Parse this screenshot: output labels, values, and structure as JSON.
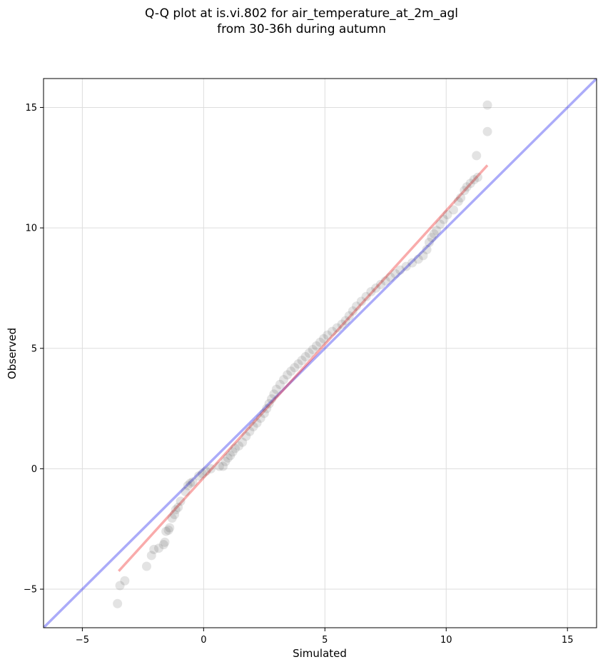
{
  "chart_data": {
    "type": "scatter",
    "title_line1": "Q-Q plot at is.vi.802 for air_temperature_at_2m_agl",
    "title_line2": "from 30-36h during autumn",
    "xlabel": "Simulated",
    "ylabel": "Observed",
    "xlim": [
      -6.6,
      16.2
    ],
    "ylim": [
      -6.6,
      16.2
    ],
    "xticks": [
      -5,
      0,
      5,
      10,
      15
    ],
    "yticks": [
      -5,
      0,
      5,
      10,
      15
    ],
    "xtick_labels": [
      "−5",
      "0",
      "5",
      "10",
      "15"
    ],
    "ytick_labels": [
      "−5",
      "0",
      "5",
      "10",
      "15"
    ],
    "grid": true,
    "identity_line": {
      "color": "#0000ee",
      "x": [
        -6.6,
        16.2
      ],
      "y": [
        -6.6,
        16.2
      ]
    },
    "fit_line": {
      "color": "#ee0000",
      "x": [
        -3.5,
        11.7
      ],
      "y": [
        -4.25,
        12.6
      ]
    },
    "points_color": "#444444",
    "points": [
      [
        -3.55,
        -5.6
      ],
      [
        -3.45,
        -4.85
      ],
      [
        -3.25,
        -4.65
      ],
      [
        -2.35,
        -4.05
      ],
      [
        -2.15,
        -3.6
      ],
      [
        -2.05,
        -3.35
      ],
      [
        -1.85,
        -3.3
      ],
      [
        -1.65,
        -3.15
      ],
      [
        -1.6,
        -3.05
      ],
      [
        -1.55,
        -2.6
      ],
      [
        -1.45,
        -2.55
      ],
      [
        -1.4,
        -2.45
      ],
      [
        -1.3,
        -2.05
      ],
      [
        -1.2,
        -1.9
      ],
      [
        -1.15,
        -1.7
      ],
      [
        -1.05,
        -1.6
      ],
      [
        -0.95,
        -1.35
      ],
      [
        -0.75,
        -0.95
      ],
      [
        -0.65,
        -0.7
      ],
      [
        -0.55,
        -0.6
      ],
      [
        -0.45,
        -0.55
      ],
      [
        -0.2,
        -0.3
      ],
      [
        -0.05,
        -0.2
      ],
      [
        0.1,
        -0.1
      ],
      [
        0.3,
        0.0
      ],
      [
        0.65,
        0.1
      ],
      [
        0.8,
        0.1
      ],
      [
        0.9,
        0.3
      ],
      [
        1.0,
        0.45
      ],
      [
        1.1,
        0.55
      ],
      [
        1.2,
        0.7
      ],
      [
        1.3,
        0.85
      ],
      [
        1.45,
        0.95
      ],
      [
        1.6,
        1.1
      ],
      [
        1.75,
        1.35
      ],
      [
        1.9,
        1.55
      ],
      [
        2.05,
        1.75
      ],
      [
        2.2,
        1.9
      ],
      [
        2.35,
        2.1
      ],
      [
        2.5,
        2.3
      ],
      [
        2.6,
        2.5
      ],
      [
        2.7,
        2.7
      ],
      [
        2.8,
        2.9
      ],
      [
        2.9,
        3.1
      ],
      [
        3.0,
        3.3
      ],
      [
        3.15,
        3.5
      ],
      [
        3.3,
        3.7
      ],
      [
        3.45,
        3.9
      ],
      [
        3.6,
        4.05
      ],
      [
        3.75,
        4.2
      ],
      [
        3.9,
        4.35
      ],
      [
        4.05,
        4.5
      ],
      [
        4.2,
        4.65
      ],
      [
        4.35,
        4.8
      ],
      [
        4.5,
        4.95
      ],
      [
        4.65,
        5.1
      ],
      [
        4.8,
        5.25
      ],
      [
        4.95,
        5.4
      ],
      [
        5.1,
        5.55
      ],
      [
        5.3,
        5.7
      ],
      [
        5.5,
        5.85
      ],
      [
        5.7,
        6.0
      ],
      [
        5.85,
        6.15
      ],
      [
        6.0,
        6.35
      ],
      [
        6.15,
        6.55
      ],
      [
        6.3,
        6.75
      ],
      [
        6.5,
        6.95
      ],
      [
        6.7,
        7.15
      ],
      [
        6.9,
        7.35
      ],
      [
        7.1,
        7.5
      ],
      [
        7.3,
        7.65
      ],
      [
        7.5,
        7.8
      ],
      [
        7.7,
        7.95
      ],
      [
        7.9,
        8.1
      ],
      [
        8.1,
        8.25
      ],
      [
        8.35,
        8.4
      ],
      [
        8.6,
        8.55
      ],
      [
        8.85,
        8.7
      ],
      [
        9.05,
        8.85
      ],
      [
        9.2,
        9.1
      ],
      [
        9.3,
        9.4
      ],
      [
        9.4,
        9.6
      ],
      [
        9.5,
        9.75
      ],
      [
        9.6,
        9.9
      ],
      [
        9.75,
        10.15
      ],
      [
        9.9,
        10.35
      ],
      [
        10.05,
        10.55
      ],
      [
        10.3,
        10.75
      ],
      [
        10.5,
        11.1
      ],
      [
        10.6,
        11.25
      ],
      [
        10.75,
        11.55
      ],
      [
        10.85,
        11.7
      ],
      [
        11.0,
        11.85
      ],
      [
        11.15,
        12.0
      ],
      [
        11.3,
        12.1
      ],
      [
        11.25,
        13.0
      ],
      [
        11.7,
        14.0
      ],
      [
        11.7,
        15.1
      ]
    ]
  }
}
